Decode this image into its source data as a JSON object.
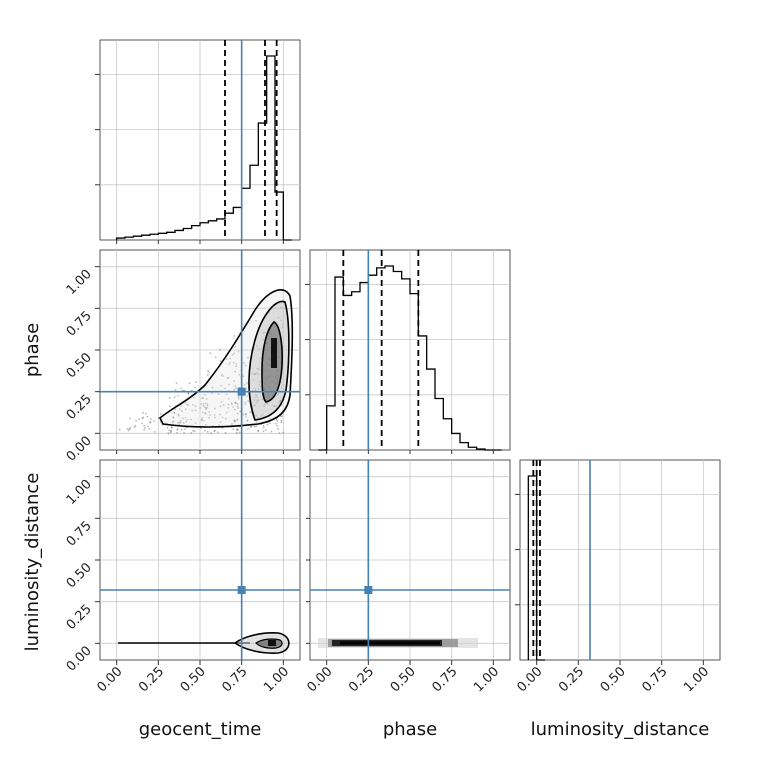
{
  "chart_data": {
    "type": "corner",
    "parameters": [
      "geocent_time",
      "phase",
      "luminosity_distance"
    ],
    "axis_range": [
      -0.1,
      1.1
    ],
    "ticks": [
      0.0,
      0.25,
      0.5,
      0.75,
      1.0
    ],
    "tick_labels": [
      "0.00",
      "0.25",
      "0.50",
      "0.75",
      "1.00"
    ],
    "grid": true,
    "truth_color": "#4682b4",
    "truths": {
      "geocent_time": 0.75,
      "phase": 0.25,
      "luminosity_distance": 0.32
    },
    "histograms": {
      "geocent_time": {
        "bin_edges": [
          0.0,
          0.05,
          0.1,
          0.15,
          0.2,
          0.25,
          0.3,
          0.35,
          0.4,
          0.45,
          0.5,
          0.55,
          0.6,
          0.65,
          0.7,
          0.75,
          0.8,
          0.85,
          0.9,
          0.95,
          1.0,
          1.05
        ],
        "counts": [
          0.01,
          0.015,
          0.02,
          0.025,
          0.03,
          0.035,
          0.04,
          0.05,
          0.06,
          0.075,
          0.09,
          0.1,
          0.11,
          0.14,
          0.17,
          0.27,
          0.39,
          0.61,
          0.96,
          0.25,
          0.0
        ],
        "quantiles": [
          0.65,
          0.89,
          0.96
        ]
      },
      "phase": {
        "bin_edges": [
          -0.05,
          0.0,
          0.05,
          0.1,
          0.15,
          0.2,
          0.25,
          0.3,
          0.35,
          0.4,
          0.45,
          0.5,
          0.55,
          0.6,
          0.65,
          0.7,
          0.75,
          0.8,
          0.85,
          0.9,
          0.95,
          1.0,
          1.05
        ],
        "counts": [
          0.0,
          0.24,
          0.94,
          0.84,
          0.86,
          0.91,
          0.95,
          0.99,
          1.0,
          0.97,
          0.93,
          0.85,
          0.62,
          0.44,
          0.28,
          0.17,
          0.09,
          0.04,
          0.015,
          0.005,
          0.0,
          0.0
        ],
        "quantiles": [
          0.1,
          0.33,
          0.55
        ]
      },
      "luminosity_distance": {
        "bin_edges": [
          -0.05,
          0.0,
          0.05
        ],
        "counts": [
          1.0,
          0.0
        ],
        "quantiles": [
          -0.02,
          0.0,
          0.02
        ]
      }
    },
    "scatter_2d": [
      {
        "x": "geocent_time",
        "y": "phase",
        "note": "density increases toward geocent_time≈0.95, phase 0.3–0.7; contours at 39%, 86%, 99%"
      },
      {
        "x": "geocent_time",
        "y": "luminosity_distance",
        "note": "thin band at luminosity_distance≈0, concentrated near geocent_time≈0.95"
      },
      {
        "x": "phase",
        "y": "luminosity_distance",
        "note": "thin band at luminosity_distance≈0 across phase 0–0.9"
      }
    ]
  }
}
